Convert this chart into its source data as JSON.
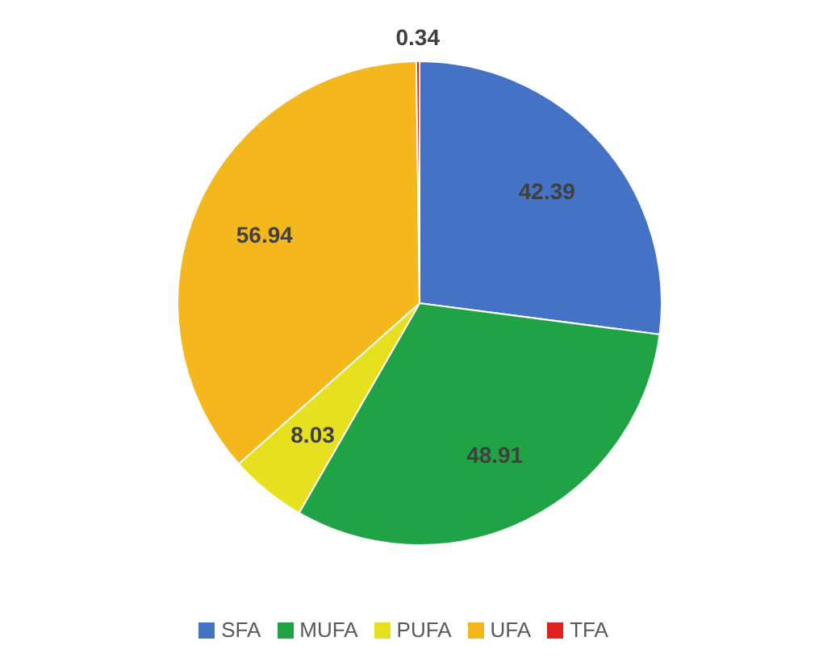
{
  "chart_data": {
    "type": "pie",
    "categories": [
      "SFA",
      "MUFA",
      "PUFA",
      "UFA",
      "TFA"
    ],
    "values": [
      42.39,
      48.91,
      8.03,
      56.94,
      0.34
    ],
    "colors": [
      "#4472c4",
      "#1fa344",
      "#e6e01e",
      "#f4b81c",
      "#e02020"
    ],
    "data_labels": true,
    "legend": "bottom"
  }
}
